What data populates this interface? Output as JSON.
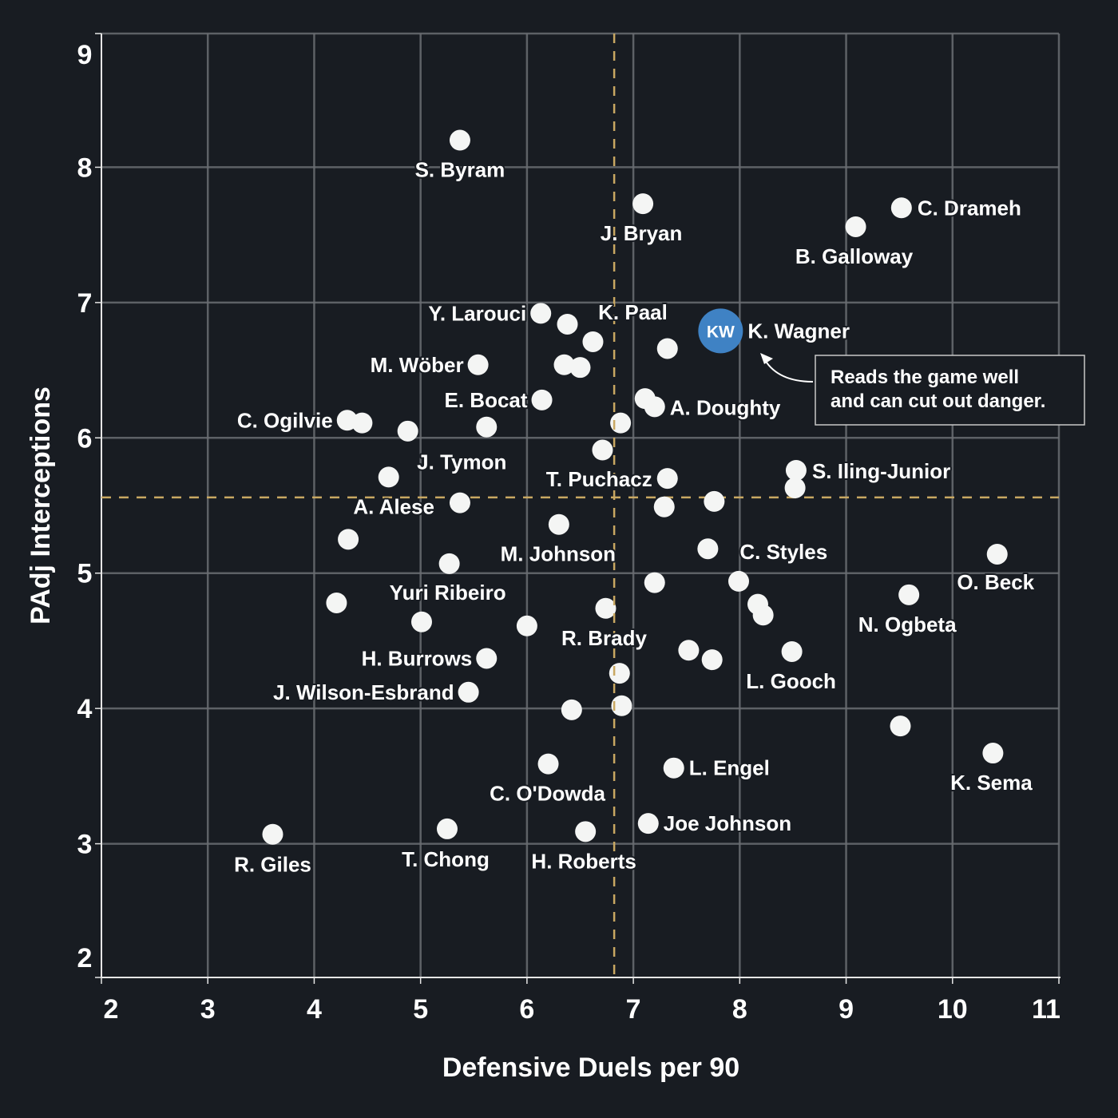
{
  "colors": {
    "background": "#181c22",
    "grid": "#6a6d72",
    "axis": "#e6e6e6",
    "point": "#f4f5f4",
    "highlight": "#3f82c4",
    "reference_line": "#c9a862",
    "text": "#ffffff"
  },
  "chart_data": {
    "type": "scatter",
    "xlabel": "Defensive Duels per 90",
    "ylabel": "PAdj Interceptions",
    "xlim": [
      2,
      11
    ],
    "ylim": [
      2,
      9
    ],
    "xticks": [
      "2",
      "3",
      "4",
      "5",
      "6",
      "7",
      "8",
      "9",
      "10",
      "11"
    ],
    "yticks": [
      "2",
      "3",
      "4",
      "5",
      "6",
      "7",
      "8",
      "9"
    ],
    "grid": true,
    "reference_lines": {
      "x_mean": 6.82,
      "y_mean": 5.56
    },
    "highlight": {
      "name": "K. Wagner",
      "initials": "KW",
      "x": 7.82,
      "y": 6.79,
      "annotation": [
        "Reads the game well",
        "and can cut out danger."
      ]
    },
    "points": [
      {
        "name": "S. Byram",
        "x": 5.37,
        "y": 8.2
      },
      {
        "name": "J. Bryan",
        "x": 7.09,
        "y": 7.73
      },
      {
        "name": "C. Drameh",
        "x": 9.52,
        "y": 7.7
      },
      {
        "name": "B. Galloway",
        "x": 9.09,
        "y": 7.56
      },
      {
        "name": "Y. Larouci",
        "x": 6.13,
        "y": 6.92
      },
      {
        "name": "",
        "x": 6.38,
        "y": 6.84
      },
      {
        "name": "K. Paal",
        "x": 6.62,
        "y": 6.71
      },
      {
        "name": "",
        "x": 7.32,
        "y": 6.66
      },
      {
        "name": "M. Wöber",
        "x": 5.54,
        "y": 6.54
      },
      {
        "name": "",
        "x": 6.35,
        "y": 6.54
      },
      {
        "name": "",
        "x": 6.5,
        "y": 6.52
      },
      {
        "name": "E. Bocat",
        "x": 6.14,
        "y": 6.28
      },
      {
        "name": "",
        "x": 7.11,
        "y": 6.29
      },
      {
        "name": "A. Doughty",
        "x": 7.2,
        "y": 6.23
      },
      {
        "name": "C. Ogilvie",
        "x": 4.31,
        "y": 6.13
      },
      {
        "name": "",
        "x": 4.45,
        "y": 6.11
      },
      {
        "name": "",
        "x": 4.88,
        "y": 6.05
      },
      {
        "name": "J. Tymon",
        "x": 5.62,
        "y": 6.08
      },
      {
        "name": "",
        "x": 6.88,
        "y": 6.11
      },
      {
        "name": "",
        "x": 6.71,
        "y": 5.91
      },
      {
        "name": "",
        "x": 4.7,
        "y": 5.71
      },
      {
        "name": "T. Puchacz",
        "x": 7.32,
        "y": 5.7
      },
      {
        "name": "S. Iling-Junior",
        "x": 8.53,
        "y": 5.76
      },
      {
        "name": "",
        "x": 8.52,
        "y": 5.63
      },
      {
        "name": "A. Alese",
        "x": 5.37,
        "y": 5.52
      },
      {
        "name": "",
        "x": 7.29,
        "y": 5.49
      },
      {
        "name": "",
        "x": 7.76,
        "y": 5.53
      },
      {
        "name": "M. Johnson",
        "x": 6.3,
        "y": 5.36
      },
      {
        "name": "",
        "x": 4.32,
        "y": 5.25
      },
      {
        "name": "C. Styles",
        "x": 7.7,
        "y": 5.18
      },
      {
        "name": "O. Beck",
        "x": 10.42,
        "y": 5.14
      },
      {
        "name": "Yuri Ribeiro",
        "x": 5.27,
        "y": 5.07
      },
      {
        "name": "",
        "x": 7.2,
        "y": 4.93
      },
      {
        "name": "",
        "x": 7.99,
        "y": 4.94
      },
      {
        "name": "N. Ogbeta",
        "x": 9.59,
        "y": 4.84
      },
      {
        "name": "",
        "x": 8.17,
        "y": 4.77
      },
      {
        "name": "",
        "x": 8.22,
        "y": 4.69
      },
      {
        "name": "",
        "x": 4.21,
        "y": 4.78
      },
      {
        "name": "",
        "x": 5.01,
        "y": 4.64
      },
      {
        "name": "",
        "x": 6.0,
        "y": 4.61
      },
      {
        "name": "R. Brady",
        "x": 6.74,
        "y": 4.74
      },
      {
        "name": "",
        "x": 7.52,
        "y": 4.43
      },
      {
        "name": "",
        "x": 7.74,
        "y": 4.36
      },
      {
        "name": "L. Gooch",
        "x": 8.49,
        "y": 4.42
      },
      {
        "name": "H. Burrows",
        "x": 5.62,
        "y": 4.37
      },
      {
        "name": "",
        "x": 6.87,
        "y": 4.26
      },
      {
        "name": "J. Wilson-Esbrand",
        "x": 5.45,
        "y": 4.12
      },
      {
        "name": "",
        "x": 6.42,
        "y": 3.99
      },
      {
        "name": "",
        "x": 6.89,
        "y": 4.02
      },
      {
        "name": "",
        "x": 9.51,
        "y": 3.87
      },
      {
        "name": "K. Sema",
        "x": 10.38,
        "y": 3.67
      },
      {
        "name": "C. O'Dowda",
        "x": 6.2,
        "y": 3.59
      },
      {
        "name": "L. Engel",
        "x": 7.38,
        "y": 3.56
      },
      {
        "name": "Joe Johnson",
        "x": 7.14,
        "y": 3.15
      },
      {
        "name": "R. Giles",
        "x": 3.61,
        "y": 3.07
      },
      {
        "name": "T. Chong",
        "x": 5.25,
        "y": 3.11
      },
      {
        "name": "H. Roberts",
        "x": 6.55,
        "y": 3.09
      }
    ]
  }
}
